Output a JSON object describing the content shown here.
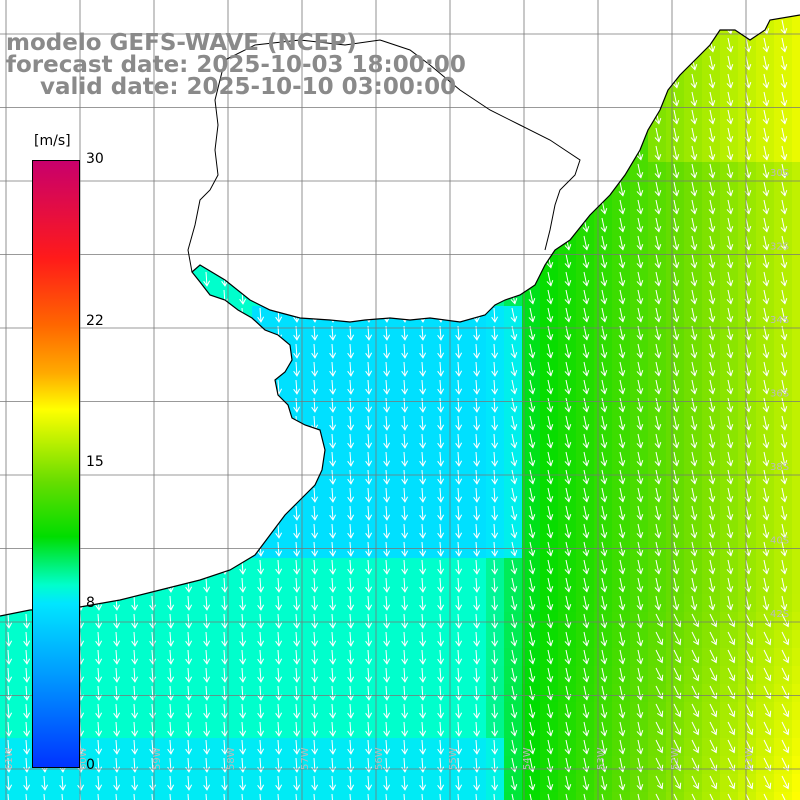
{
  "title": {
    "line1": "modelo GEFS-WAVE (NCEP)",
    "line2": "forecast date: 2025-10-03 18:00:00",
    "line3": "valid date: 2025-10-10 03:00:00"
  },
  "colorbar": {
    "unit": "[m/s]",
    "ticks": [
      "30",
      "22",
      "15",
      "8",
      "0"
    ],
    "tick_values": [
      30,
      22,
      15,
      8,
      0
    ],
    "min": 0,
    "max": 30,
    "colors": [
      "#c8006c",
      "#ff1a1a",
      "#ff6600",
      "#ffaa00",
      "#ffff00",
      "#66dd00",
      "#00dd00",
      "#00ffcc",
      "#00e6ff",
      "#0099ff",
      "#0033ff"
    ]
  },
  "map": {
    "field": "wind speed with direction arrows",
    "land_color": "#ffffff",
    "coastline_color": "#000000",
    "grid_color": "#777777",
    "lat_labels": [
      "30S",
      "32S",
      "34S",
      "36S",
      "38S",
      "40S",
      "42S"
    ],
    "lon_labels": [
      "61W",
      "60W",
      "59W",
      "58W",
      "57W",
      "56W",
      "55W",
      "54W",
      "53W",
      "52W",
      "51W"
    ]
  }
}
